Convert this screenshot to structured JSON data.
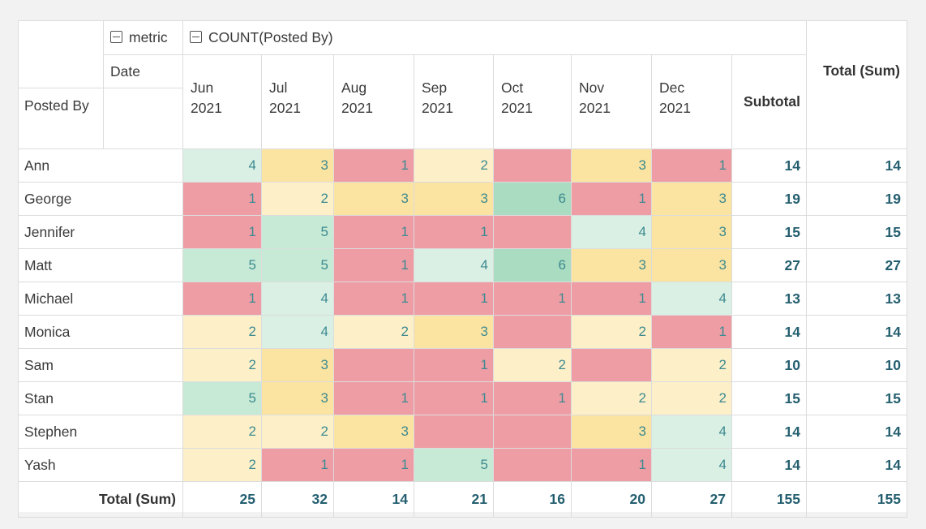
{
  "pivot": {
    "metric_header": "metric",
    "measure_header": "COUNT(Posted By)",
    "column_field": "Date",
    "row_field": "Posted By",
    "months": [
      {
        "line1": "Jun",
        "line2": "2021"
      },
      {
        "line1": "Jul",
        "line2": "2021"
      },
      {
        "line1": "Aug",
        "line2": "2021"
      },
      {
        "line1": "Sep",
        "line2": "2021"
      },
      {
        "line1": "Oct",
        "line2": "2021"
      },
      {
        "line1": "Nov",
        "line2": "2021"
      },
      {
        "line1": "Dec",
        "line2": "2021"
      }
    ],
    "subtotal_header": "Subtotal",
    "total_header": "Total (Sum)",
    "rows": [
      {
        "name": "Ann",
        "cells": [
          {
            "v": "4",
            "c": "lgrn"
          },
          {
            "v": "3",
            "c": "yel"
          },
          {
            "v": "1",
            "c": "red"
          },
          {
            "v": "2",
            "c": "lyel"
          },
          {
            "v": "",
            "c": "red"
          },
          {
            "v": "3",
            "c": "yel"
          },
          {
            "v": "1",
            "c": "red"
          }
        ],
        "subtotal": "14",
        "total": "14"
      },
      {
        "name": "George",
        "cells": [
          {
            "v": "1",
            "c": "red"
          },
          {
            "v": "2",
            "c": "lyel"
          },
          {
            "v": "3",
            "c": "yel"
          },
          {
            "v": "3",
            "c": "yel"
          },
          {
            "v": "6",
            "c": "dgrn"
          },
          {
            "v": "1",
            "c": "red"
          },
          {
            "v": "3",
            "c": "yel"
          }
        ],
        "subtotal": "19",
        "total": "19"
      },
      {
        "name": "Jennifer",
        "cells": [
          {
            "v": "1",
            "c": "red"
          },
          {
            "v": "5",
            "c": "grn"
          },
          {
            "v": "1",
            "c": "red"
          },
          {
            "v": "1",
            "c": "red"
          },
          {
            "v": "",
            "c": "red"
          },
          {
            "v": "4",
            "c": "lgrn"
          },
          {
            "v": "3",
            "c": "yel"
          }
        ],
        "subtotal": "15",
        "total": "15"
      },
      {
        "name": "Matt",
        "cells": [
          {
            "v": "5",
            "c": "grn"
          },
          {
            "v": "5",
            "c": "grn"
          },
          {
            "v": "1",
            "c": "red"
          },
          {
            "v": "4",
            "c": "lgrn"
          },
          {
            "v": "6",
            "c": "dgrn"
          },
          {
            "v": "3",
            "c": "yel"
          },
          {
            "v": "3",
            "c": "yel"
          }
        ],
        "subtotal": "27",
        "total": "27"
      },
      {
        "name": "Michael",
        "cells": [
          {
            "v": "1",
            "c": "red"
          },
          {
            "v": "4",
            "c": "lgrn"
          },
          {
            "v": "1",
            "c": "red"
          },
          {
            "v": "1",
            "c": "red"
          },
          {
            "v": "1",
            "c": "red"
          },
          {
            "v": "1",
            "c": "red"
          },
          {
            "v": "4",
            "c": "lgrn"
          }
        ],
        "subtotal": "13",
        "total": "13"
      },
      {
        "name": "Monica",
        "cells": [
          {
            "v": "2",
            "c": "lyel"
          },
          {
            "v": "4",
            "c": "lgrn"
          },
          {
            "v": "2",
            "c": "lyel"
          },
          {
            "v": "3",
            "c": "yel"
          },
          {
            "v": "",
            "c": "red"
          },
          {
            "v": "2",
            "c": "lyel"
          },
          {
            "v": "1",
            "c": "red"
          }
        ],
        "subtotal": "14",
        "total": "14"
      },
      {
        "name": "Sam",
        "cells": [
          {
            "v": "2",
            "c": "lyel"
          },
          {
            "v": "3",
            "c": "yel"
          },
          {
            "v": "",
            "c": "red"
          },
          {
            "v": "1",
            "c": "red"
          },
          {
            "v": "2",
            "c": "lyel"
          },
          {
            "v": "",
            "c": "red"
          },
          {
            "v": "2",
            "c": "lyel"
          }
        ],
        "subtotal": "10",
        "total": "10"
      },
      {
        "name": "Stan",
        "cells": [
          {
            "v": "5",
            "c": "grn"
          },
          {
            "v": "3",
            "c": "yel"
          },
          {
            "v": "1",
            "c": "red"
          },
          {
            "v": "1",
            "c": "red"
          },
          {
            "v": "1",
            "c": "red"
          },
          {
            "v": "2",
            "c": "lyel"
          },
          {
            "v": "2",
            "c": "lyel"
          }
        ],
        "subtotal": "15",
        "total": "15"
      },
      {
        "name": "Stephen",
        "cells": [
          {
            "v": "2",
            "c": "lyel"
          },
          {
            "v": "2",
            "c": "lyel"
          },
          {
            "v": "3",
            "c": "yel"
          },
          {
            "v": "",
            "c": "red"
          },
          {
            "v": "",
            "c": "red"
          },
          {
            "v": "3",
            "c": "yel"
          },
          {
            "v": "4",
            "c": "lgrn"
          }
        ],
        "subtotal": "14",
        "total": "14"
      },
      {
        "name": "Yash",
        "cells": [
          {
            "v": "2",
            "c": "lyel"
          },
          {
            "v": "1",
            "c": "red"
          },
          {
            "v": "1",
            "c": "red"
          },
          {
            "v": "5",
            "c": "grn"
          },
          {
            "v": "",
            "c": "red"
          },
          {
            "v": "1",
            "c": "red"
          },
          {
            "v": "4",
            "c": "lgrn"
          }
        ],
        "subtotal": "14",
        "total": "14"
      }
    ],
    "totals_row": {
      "label": "Total (Sum)",
      "values": [
        "25",
        "32",
        "14",
        "21",
        "16",
        "20",
        "27"
      ],
      "subtotal": "155",
      "total": "155"
    }
  },
  "colors": {
    "red": "#ee9da5",
    "yellow": "#fbe4a1",
    "light_yellow": "#fdf0c9",
    "light_green": "#daf0e4",
    "green": "#c6ead6",
    "dark_green": "#a9dcc0",
    "value_text": "#3d8a90",
    "total_text": "#245f6f"
  }
}
